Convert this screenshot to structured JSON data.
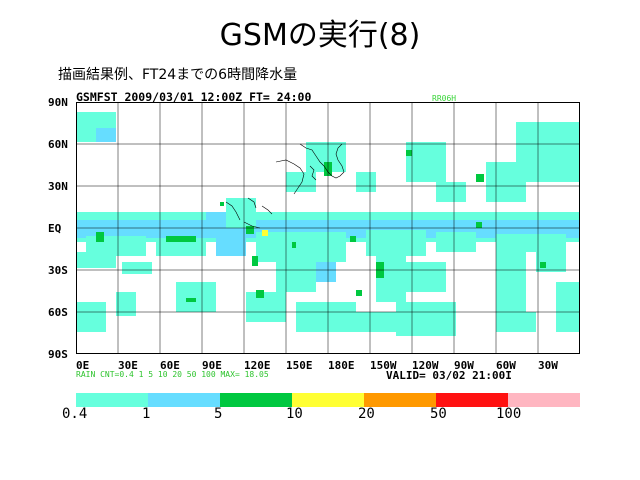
{
  "slide": {
    "title": "GSMの実行(8)",
    "subtitle": "描画結果例、FT24までの6時間降水量"
  },
  "map": {
    "header_left": "GSMFST 2009/03/01 12:00Z FT= 24:00",
    "header_right": "RR06H",
    "lat_labels": [
      "90N",
      "60N",
      "30N",
      "EQ",
      "30S",
      "60S",
      "90S"
    ],
    "lon_labels": [
      "0E",
      "30E",
      "60E",
      "90E",
      "120E",
      "150E",
      "180E",
      "150W",
      "120W",
      "90W",
      "60W",
      "30W"
    ],
    "info_line": "RAIN   CNT=0.4 1 5 10 20 50 100     MAX=     18.05",
    "valid": "VALID= 03/02 21:00I"
  },
  "legend": {
    "labels": [
      "0.4",
      "1",
      "5",
      "10",
      "20",
      "50",
      "100"
    ],
    "colors": [
      "#66ffdd",
      "#66ddff",
      "#00c840",
      "#ffff33",
      "#ff9900",
      "#ff1111",
      "#ffb6c1"
    ]
  }
}
